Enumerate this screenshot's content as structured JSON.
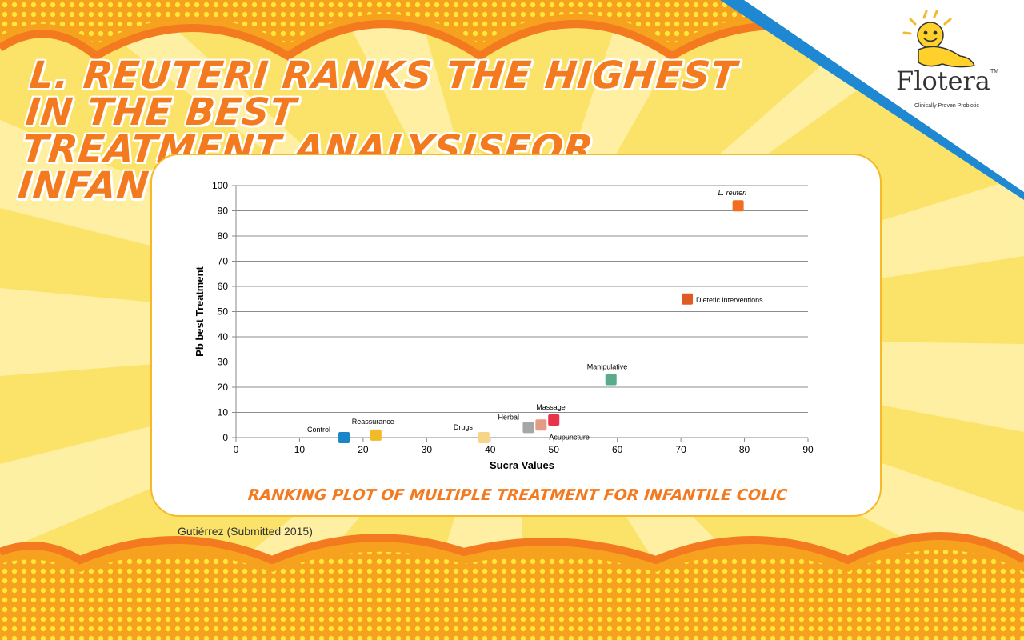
{
  "headline": {
    "line1": "L. reuteri ranks the highest in the best",
    "line2": "treatment analysisfor infantile colic"
  },
  "logo": {
    "brand": "Flotera",
    "tm": "TM",
    "tagline": "Clinically Proven Probiotic",
    "icon": "smiling-sun-mascot"
  },
  "chart_caption": "Ranking plot of multiple treatment for infantile colic",
  "citation": "Gutiérrez (Submitted 2015)",
  "colors": {
    "headline": "#f47a20",
    "card_border": "#f7b82a",
    "background": "#fbe36a"
  },
  "chart_data": {
    "type": "scatter",
    "xlabel": "Sucra Values",
    "ylabel": "Pb best Treatment",
    "xlim": [
      0,
      90
    ],
    "ylim": [
      0,
      100
    ],
    "xticks": [
      0,
      10,
      20,
      30,
      40,
      50,
      60,
      70,
      80,
      90
    ],
    "yticks": [
      0,
      10,
      20,
      30,
      40,
      50,
      60,
      70,
      80,
      90,
      100
    ],
    "grid": "horizontal",
    "marker": "square",
    "points": [
      {
        "label": "Control",
        "x": 17,
        "y": 0,
        "color": "#1a86c8"
      },
      {
        "label": "Reassurance",
        "x": 22,
        "y": 1,
        "color": "#f2b928"
      },
      {
        "label": "Drugs",
        "x": 39,
        "y": 0,
        "color": "#f6d58a"
      },
      {
        "label": "Herbal",
        "x": 46,
        "y": 4,
        "color": "#a6a6a6"
      },
      {
        "label": "Acupuncture",
        "x": 48,
        "y": 5,
        "color": "#e59a86"
      },
      {
        "label": "Massage",
        "x": 50,
        "y": 7,
        "color": "#e8334a"
      },
      {
        "label": "Manipulative",
        "x": 59,
        "y": 23,
        "color": "#5aab8c"
      },
      {
        "label": "Dietetic interventions",
        "x": 71,
        "y": 55,
        "color": "#e05a24"
      },
      {
        "label": "L. reuteri",
        "x": 79,
        "y": 92,
        "color": "#f26d1f"
      }
    ]
  }
}
